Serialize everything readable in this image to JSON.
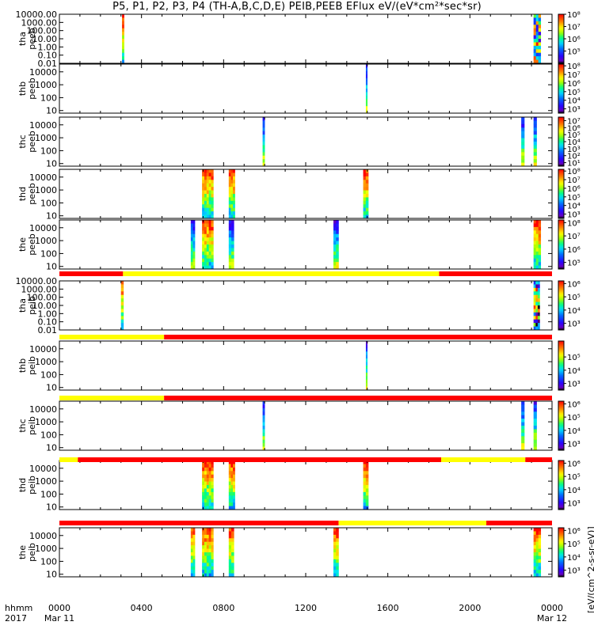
{
  "chart_data": {
    "type": "heatmap",
    "title": "P5, P1, P2, P3, P4 (TH-A,B,C,D,E) PEIB,PEEB EFlux eV/(eV*cm²*sec*sr)",
    "colorbar_label": "[eV/(cm^2-s-sr-eV)]",
    "time_axis": {
      "label_line1": "hhmm",
      "label_line2": "2017",
      "range_hours": [
        0,
        24
      ],
      "ticks": [
        {
          "hour": 0,
          "label": "0000",
          "sub": "Mar 11"
        },
        {
          "hour": 4,
          "label": "0400",
          "sub": ""
        },
        {
          "hour": 8,
          "label": "0800",
          "sub": ""
        },
        {
          "hour": 12,
          "label": "1200",
          "sub": ""
        },
        {
          "hour": 16,
          "label": "1600",
          "sub": ""
        },
        {
          "hour": 20,
          "label": "2000",
          "sub": ""
        },
        {
          "hour": 24,
          "label": "0000",
          "sub": "Mar 12"
        }
      ]
    },
    "panels": [
      {
        "name": "tha peeb",
        "probe": "tha",
        "product": "peeb",
        "ylog": [
          -2,
          4
        ],
        "yticks": [
          {
            "v": 10000,
            "label": "10000.00"
          },
          {
            "v": 1000,
            "label": "1000.00"
          },
          {
            "v": 100,
            "label": "100.00"
          },
          {
            "v": 10,
            "label": "10.00"
          },
          {
            "v": 1,
            "label": "1.00"
          },
          {
            "v": 0.1,
            "label": "0.10"
          },
          {
            "v": 0.01,
            "label": "0.01"
          }
        ],
        "clog": [
          4,
          8
        ],
        "cticks": [
          {
            "e": 8,
            "label": "10⁸"
          },
          {
            "e": 7,
            "label": "10⁷"
          },
          {
            "e": 6,
            "label": "10⁶"
          },
          {
            "e": 5,
            "label": "10⁵"
          }
        ],
        "bursts": [
          {
            "start": 3.05,
            "end": 3.15,
            "style": "hot"
          },
          {
            "start": 23.1,
            "end": 23.45,
            "style": "mixed"
          }
        ]
      },
      {
        "name": "thb peeb",
        "probe": "thb",
        "product": "peeb",
        "ylog": [
          0.8,
          4.6
        ],
        "yticks": [
          {
            "v": 10000,
            "label": "10000"
          },
          {
            "v": 1000,
            "label": "1000"
          },
          {
            "v": 100,
            "label": "100"
          },
          {
            "v": 10,
            "label": "10"
          }
        ],
        "clog": [
          2.5,
          8.2
        ],
        "cticks": [
          {
            "e": 8,
            "label": "10⁸"
          },
          {
            "e": 7,
            "label": "10⁷"
          },
          {
            "e": 6,
            "label": "10⁶"
          },
          {
            "e": 5,
            "label": "10⁵"
          },
          {
            "e": 4,
            "label": "10⁴"
          },
          {
            "e": 3,
            "label": "10³"
          }
        ],
        "bursts": [
          {
            "start": 14.93,
            "end": 15.0,
            "style": "cool"
          }
        ]
      },
      {
        "name": "thc peeb",
        "probe": "thc",
        "product": "peeb",
        "ylog": [
          0.8,
          4.6
        ],
        "yticks": [
          {
            "v": 10000,
            "label": "10000"
          },
          {
            "v": 1000,
            "label": "1000"
          },
          {
            "v": 100,
            "label": "100"
          },
          {
            "v": 10,
            "label": "10"
          }
        ],
        "clog": [
          0.5,
          7.5
        ],
        "cticks": [
          {
            "e": 7,
            "label": "10⁷"
          },
          {
            "e": 6,
            "label": "10⁶"
          },
          {
            "e": 5,
            "label": "10⁵"
          },
          {
            "e": 4,
            "label": "10⁴"
          },
          {
            "e": 3,
            "label": "10³"
          },
          {
            "e": 2,
            "label": "10²"
          },
          {
            "e": 1,
            "label": "10¹"
          }
        ],
        "bursts": [
          {
            "start": 9.9,
            "end": 10.0,
            "style": "cool"
          },
          {
            "start": 22.5,
            "end": 22.65,
            "style": "cool"
          },
          {
            "start": 23.1,
            "end": 23.25,
            "style": "cool"
          }
        ]
      },
      {
        "name": "thd peeb",
        "probe": "thd",
        "product": "peeb",
        "ylog": [
          0.8,
          4.6
        ],
        "yticks": [
          {
            "v": 10000,
            "label": "10000"
          },
          {
            "v": 1000,
            "label": "1000"
          },
          {
            "v": 100,
            "label": "100"
          },
          {
            "v": 10,
            "label": "10"
          }
        ],
        "clog": [
          2.5,
          8.2
        ],
        "cticks": [
          {
            "e": 8,
            "label": "10⁸"
          },
          {
            "e": 7,
            "label": "10⁷"
          },
          {
            "e": 6,
            "label": "10⁶"
          },
          {
            "e": 5,
            "label": "10⁵"
          },
          {
            "e": 4,
            "label": "10⁴"
          },
          {
            "e": 3,
            "label": "10³"
          }
        ],
        "bursts": [
          {
            "start": 6.95,
            "end": 7.5,
            "style": "hot"
          },
          {
            "start": 8.25,
            "end": 8.55,
            "style": "hot"
          },
          {
            "start": 14.8,
            "end": 15.05,
            "style": "hot"
          }
        ]
      },
      {
        "name": "the peeb",
        "probe": "the",
        "product": "peeb",
        "ylog": [
          0.8,
          4.6
        ],
        "yticks": [
          {
            "v": 10000,
            "label": "10000"
          },
          {
            "v": 1000,
            "label": "1000"
          },
          {
            "v": 100,
            "label": "100"
          },
          {
            "v": 10,
            "label": "10"
          }
        ],
        "clog": [
          4.5,
          8.2
        ],
        "cticks": [
          {
            "e": 8,
            "label": "10⁸"
          },
          {
            "e": 7,
            "label": "10⁷"
          },
          {
            "e": 6,
            "label": "10⁶"
          },
          {
            "e": 5,
            "label": "10⁵"
          }
        ],
        "bursts": [
          {
            "start": 6.4,
            "end": 6.6,
            "style": "cool"
          },
          {
            "start": 6.95,
            "end": 7.5,
            "style": "hot"
          },
          {
            "start": 8.25,
            "end": 8.5,
            "style": "cool"
          },
          {
            "start": 13.35,
            "end": 13.6,
            "style": "cool"
          },
          {
            "start": 23.1,
            "end": 23.45,
            "style": "hot"
          }
        ]
      },
      {
        "name": "tha peib",
        "probe": "tha",
        "product": "peib",
        "ylog": [
          -2,
          4
        ],
        "yticks": [
          {
            "v": 10000,
            "label": "10000.00"
          },
          {
            "v": 1000,
            "label": "1000.00"
          },
          {
            "v": 100,
            "label": "100.00"
          },
          {
            "v": 10,
            "label": "10.00"
          },
          {
            "v": 1,
            "label": "1.00"
          },
          {
            "v": 0.1,
            "label": "0.10"
          },
          {
            "v": 0.01,
            "label": "0.01"
          }
        ],
        "clog": [
          2.5,
          6.2
        ],
        "cticks": [
          {
            "e": 6,
            "label": "10⁶"
          },
          {
            "e": 5,
            "label": "10⁵"
          },
          {
            "e": 4,
            "label": "10⁴"
          },
          {
            "e": 3,
            "label": "10³"
          }
        ],
        "bursts": [
          {
            "start": 3.0,
            "end": 3.12,
            "style": "hot"
          },
          {
            "start": 23.1,
            "end": 23.4,
            "style": "mixed"
          }
        ]
      },
      {
        "name": "thb peib",
        "probe": "thb",
        "product": "peib",
        "ylog": [
          0.8,
          4.6
        ],
        "yticks": [
          {
            "v": 10000,
            "label": "10000"
          },
          {
            "v": 1000,
            "label": "1000"
          },
          {
            "v": 100,
            "label": "100"
          },
          {
            "v": 10,
            "label": "10"
          }
        ],
        "clog": [
          2.5,
          6.2
        ],
        "cticks": [
          {
            "e": 5,
            "label": "10⁵"
          },
          {
            "e": 4,
            "label": "10⁴"
          },
          {
            "e": 3,
            "label": "10³"
          }
        ],
        "bursts": [
          {
            "start": 14.93,
            "end": 15.0,
            "style": "cool"
          }
        ]
      },
      {
        "name": "thc peib",
        "probe": "thc",
        "product": "peib",
        "ylog": [
          0.8,
          4.6
        ],
        "yticks": [
          {
            "v": 10000,
            "label": "10000"
          },
          {
            "v": 1000,
            "label": "1000"
          },
          {
            "v": 100,
            "label": "100"
          },
          {
            "v": 10,
            "label": "10"
          }
        ],
        "clog": [
          2.5,
          6.2
        ],
        "cticks": [
          {
            "e": 6,
            "label": "10⁶"
          },
          {
            "e": 5,
            "label": "10⁵"
          },
          {
            "e": 4,
            "label": "10⁴"
          },
          {
            "e": 3,
            "label": "10³"
          }
        ],
        "bursts": [
          {
            "start": 9.9,
            "end": 10.0,
            "style": "cool"
          },
          {
            "start": 22.5,
            "end": 22.65,
            "style": "cool"
          },
          {
            "start": 23.1,
            "end": 23.25,
            "style": "cool"
          }
        ]
      },
      {
        "name": "thd peib",
        "probe": "thd",
        "product": "peib",
        "ylog": [
          0.8,
          4.6
        ],
        "yticks": [
          {
            "v": 10000,
            "label": "10000"
          },
          {
            "v": 1000,
            "label": "1000"
          },
          {
            "v": 100,
            "label": "100"
          },
          {
            "v": 10,
            "label": "10"
          }
        ],
        "clog": [
          2.5,
          6.2
        ],
        "cticks": [
          {
            "e": 6,
            "label": "10⁶"
          },
          {
            "e": 5,
            "label": "10⁵"
          },
          {
            "e": 4,
            "label": "10⁴"
          },
          {
            "e": 3,
            "label": "10³"
          }
        ],
        "bursts": [
          {
            "start": 6.95,
            "end": 7.5,
            "style": "hot"
          },
          {
            "start": 8.25,
            "end": 8.55,
            "style": "hot"
          },
          {
            "start": 14.8,
            "end": 15.05,
            "style": "hot"
          }
        ]
      },
      {
        "name": "the peib",
        "probe": "the",
        "product": "peib",
        "ylog": [
          0.8,
          4.6
        ],
        "yticks": [
          {
            "v": 10000,
            "label": "10000"
          },
          {
            "v": 1000,
            "label": "1000"
          },
          {
            "v": 100,
            "label": "100"
          },
          {
            "v": 10,
            "label": "10"
          }
        ],
        "clog": [
          2.5,
          6.2
        ],
        "cticks": [
          {
            "e": 6,
            "label": "10⁶"
          },
          {
            "e": 5,
            "label": "10⁵"
          },
          {
            "e": 4,
            "label": "10⁴"
          },
          {
            "e": 3,
            "label": "10³"
          }
        ],
        "bursts": [
          {
            "start": 6.4,
            "end": 6.6,
            "style": "hot"
          },
          {
            "start": 6.95,
            "end": 7.5,
            "style": "hot"
          },
          {
            "start": 8.25,
            "end": 8.5,
            "style": "hot"
          },
          {
            "start": 13.35,
            "end": 13.6,
            "style": "hot"
          },
          {
            "start": 23.1,
            "end": 23.45,
            "style": "hot"
          }
        ]
      }
    ],
    "mode_bars": [
      {
        "between_panels": [
          4,
          5
        ],
        "segments": [
          {
            "start": 0,
            "end": 3.1,
            "color": "#ff0000"
          },
          {
            "start": 3.1,
            "end": 18.5,
            "color": "#ffff00"
          },
          {
            "start": 18.5,
            "end": 24,
            "color": "#ff0000"
          }
        ]
      },
      {
        "between_panels": [
          5,
          6
        ],
        "segments": [
          {
            "start": 0,
            "end": 5.1,
            "color": "#ffff00"
          },
          {
            "start": 5.1,
            "end": 24,
            "color": "#ff0000"
          }
        ]
      },
      {
        "between_panels": [
          6,
          7
        ],
        "segments": [
          {
            "start": 0,
            "end": 5.1,
            "color": "#ffff00"
          },
          {
            "start": 5.1,
            "end": 24,
            "color": "#ff0000"
          }
        ]
      },
      {
        "between_panels": [
          7,
          8
        ],
        "segments": [
          {
            "start": 0,
            "end": 0.9,
            "color": "#ffff00"
          },
          {
            "start": 0.9,
            "end": 18.6,
            "color": "#ff0000"
          },
          {
            "start": 18.6,
            "end": 22.7,
            "color": "#ffff00"
          },
          {
            "start": 22.7,
            "end": 24,
            "color": "#ff0000"
          }
        ]
      },
      {
        "between_panels": [
          8,
          9
        ],
        "segments": [
          {
            "start": 0,
            "end": 13.6,
            "color": "#ff0000"
          },
          {
            "start": 13.6,
            "end": 20.8,
            "color": "#ffff00"
          },
          {
            "start": 20.8,
            "end": 24,
            "color": "#ff0000"
          }
        ]
      }
    ]
  }
}
